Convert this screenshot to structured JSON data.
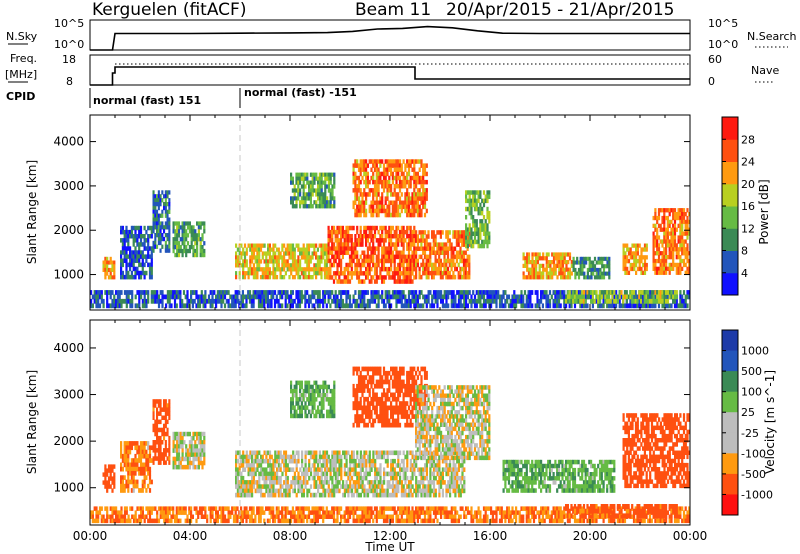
{
  "header": {
    "station": "Kerguelen (fitACF)",
    "beam": "Beam 11",
    "date_range": "20/Apr/2015 - 21/Apr/2015"
  },
  "colors": {
    "power_scale": [
      "#1010ff",
      "#2255bb",
      "#3a8a55",
      "#66bb44",
      "#b8d020",
      "#ff9a10",
      "#ff5010",
      "#ff1a10"
    ],
    "velocity_scale": [
      "#ff1010",
      "#ff5010",
      "#ff9a10",
      "#bdbdbd",
      "#bdbdbd",
      "#66bb44",
      "#3a8a55",
      "#2255bb",
      "#1d3aa8"
    ]
  },
  "chart_data": [
    {
      "type": "line",
      "panel": "nsky-nsearch",
      "left_label": "N.Sky",
      "right_label": "N.Search",
      "left_ticks": [
        "10^5",
        "10^0"
      ],
      "right_ticks": [
        "10^5",
        "10^0"
      ],
      "x_range_hours": [
        0,
        24
      ],
      "series": [
        {
          "name": "N.Sky",
          "x": [
            0,
            0.5,
            0.9,
            1.0,
            4,
            6,
            8,
            9.5,
            10.5,
            11.5,
            12.5,
            13.5,
            14.5,
            15.5,
            16.5,
            18,
            20,
            22,
            24
          ],
          "y_frac": [
            0.0,
            0.0,
            0.0,
            0.55,
            0.55,
            0.56,
            0.57,
            0.58,
            0.62,
            0.7,
            0.72,
            0.78,
            0.74,
            0.64,
            0.56,
            0.55,
            0.55,
            0.55,
            0.55
          ]
        }
      ]
    },
    {
      "type": "line",
      "panel": "freq-nave",
      "left_label_1": "Freq.",
      "left_label_2": "[MHz]",
      "right_label": "Nave",
      "left_ticks": [
        "18",
        "8"
      ],
      "right_ticks": [
        "60",
        "0"
      ],
      "series": [
        {
          "name": "Freq.",
          "x": [
            0,
            0.9,
            0.9,
            1.0,
            1.0,
            13.0,
            13.0,
            24
          ],
          "y": [
            8,
            8,
            12,
            12,
            14,
            14,
            10,
            10
          ]
        }
      ],
      "nave_level_frac": 0.7
    },
    {
      "type": "table",
      "panel": "cpid",
      "label": "CPID",
      "segments": [
        {
          "start": 0,
          "text": "normal (fast) 151"
        },
        {
          "start": 6,
          "text": "normal (fast) -151"
        }
      ]
    },
    {
      "type": "heatmap",
      "panel": "power",
      "ylabel": "Slant Range [km]",
      "yticks": [
        1000,
        2000,
        3000,
        4000
      ],
      "ylim": [
        200,
        4600
      ],
      "xlim": [
        0,
        24
      ],
      "colorbar_label": "Power [dB]",
      "colorbar_ticks": [
        4,
        8,
        12,
        16,
        20,
        24,
        28
      ],
      "colorbar_range": [
        0,
        32
      ],
      "blobs": [
        {
          "x0": 0.5,
          "x1": 1.0,
          "r0": 900,
          "r1": 1400,
          "v": 22
        },
        {
          "x0": 1.2,
          "x1": 2.5,
          "r0": 900,
          "r1": 2100,
          "v": 6
        },
        {
          "x0": 2.5,
          "x1": 3.2,
          "r0": 1500,
          "r1": 2900,
          "v": 8
        },
        {
          "x0": 3.3,
          "x1": 4.6,
          "r0": 1400,
          "r1": 2200,
          "v": 12
        },
        {
          "x0": 5.8,
          "x1": 9.5,
          "r0": 900,
          "r1": 1700,
          "v": 20
        },
        {
          "x0": 9.5,
          "x1": 13.0,
          "r0": 800,
          "r1": 2100,
          "v": 26
        },
        {
          "x0": 13.0,
          "x1": 15.2,
          "r0": 900,
          "r1": 2000,
          "v": 24
        },
        {
          "x0": 10.5,
          "x1": 13.5,
          "r0": 2300,
          "r1": 3600,
          "v": 24
        },
        {
          "x0": 8.0,
          "x1": 9.8,
          "r0": 2500,
          "r1": 3300,
          "v": 12
        },
        {
          "x0": 15.0,
          "x1": 16.0,
          "r0": 1600,
          "r1": 2900,
          "v": 14
        },
        {
          "x0": 17.3,
          "x1": 19.3,
          "r0": 900,
          "r1": 1500,
          "v": 22
        },
        {
          "x0": 19.3,
          "x1": 20.8,
          "r0": 900,
          "r1": 1400,
          "v": 10
        },
        {
          "x0": 21.3,
          "x1": 22.3,
          "r0": 1000,
          "r1": 1700,
          "v": 22
        },
        {
          "x0": 22.5,
          "x1": 24.0,
          "r0": 1000,
          "r1": 2500,
          "v": 24
        },
        {
          "x0": 0.0,
          "x1": 24.0,
          "r0": 250,
          "r1": 650,
          "v": 6
        },
        {
          "x0": 19.0,
          "x1": 23.5,
          "r0": 350,
          "r1": 650,
          "v": 16
        }
      ]
    },
    {
      "type": "heatmap",
      "panel": "velocity",
      "ylabel": "Slant Range [km]",
      "yticks": [
        1000,
        2000,
        3000,
        4000
      ],
      "ylim": [
        200,
        4600
      ],
      "xlim": [
        0,
        24
      ],
      "xticks": [
        "00:00",
        "04:00",
        "08:00",
        "12:00",
        "16:00",
        "20:00",
        "00:00"
      ],
      "xlabel": "Time UT",
      "colorbar_label": "Velocity [m s^-1]",
      "colorbar_ticks": [
        "1000",
        "500",
        "100",
        "25",
        "-25",
        "-100",
        "-500",
        "-1000"
      ],
      "blobs": [
        {
          "x0": 0.5,
          "x1": 1.0,
          "r0": 900,
          "r1": 1500,
          "v": -300
        },
        {
          "x0": 1.2,
          "x1": 2.5,
          "r0": 900,
          "r1": 2000,
          "v": -80
        },
        {
          "x0": 2.5,
          "x1": 3.2,
          "r0": 1500,
          "r1": 2900,
          "v": -150
        },
        {
          "x0": 3.3,
          "x1": 4.6,
          "r0": 1400,
          "r1": 2200,
          "v": 0
        },
        {
          "x0": 5.8,
          "x1": 15.0,
          "r0": 800,
          "r1": 1800,
          "v": 0
        },
        {
          "x0": 10.5,
          "x1": 13.5,
          "r0": 2300,
          "r1": 3600,
          "v": -300
        },
        {
          "x0": 8.0,
          "x1": 9.8,
          "r0": 2500,
          "r1": 3300,
          "v": 80
        },
        {
          "x0": 13.0,
          "x1": 16.0,
          "r0": 1600,
          "r1": 3200,
          "v": 0
        },
        {
          "x0": 16.5,
          "x1": 21.0,
          "r0": 900,
          "r1": 1600,
          "v": 80
        },
        {
          "x0": 21.3,
          "x1": 24.0,
          "r0": 1000,
          "r1": 2600,
          "v": -200
        },
        {
          "x0": 0.0,
          "x1": 24.0,
          "r0": 250,
          "r1": 600,
          "v": -100
        },
        {
          "x0": 19.0,
          "x1": 23.5,
          "r0": 350,
          "r1": 650,
          "v": -150
        }
      ]
    }
  ]
}
